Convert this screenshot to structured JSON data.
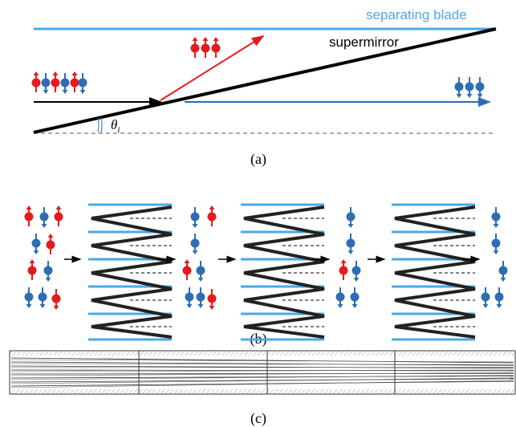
{
  "labels": {
    "blade": "separating blade",
    "mirror": "supermirror",
    "angle_symbol": "θ",
    "angle_subscript": "i",
    "panel_a": "(a)",
    "panel_b": "(b)",
    "panel_c": "(c)"
  }
}
